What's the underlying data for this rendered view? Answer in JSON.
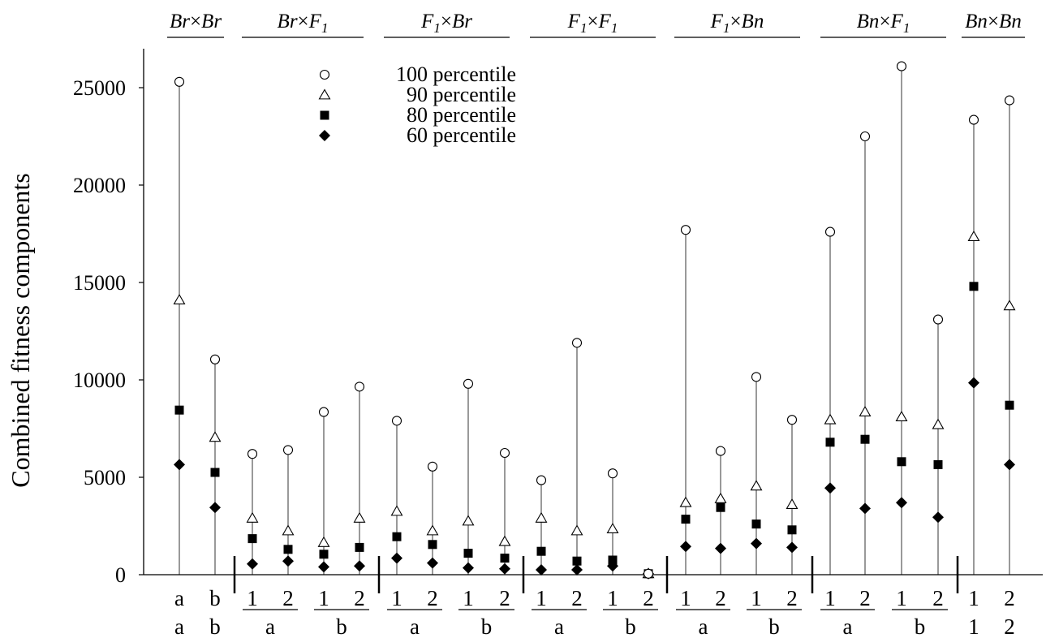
{
  "chart_data": {
    "type": "scatter",
    "ylabel": "Combined fitness components",
    "ylim": [
      0,
      27000
    ],
    "yticks": [
      0,
      5000,
      10000,
      15000,
      20000,
      25000
    ],
    "legend_position": "top-left",
    "legend": [
      {
        "label": "100 percentile",
        "marker": "open-circle"
      },
      {
        "label": "90 percentile",
        "marker": "open-triangle"
      },
      {
        "label": "80 percentile",
        "marker": "filled-square"
      },
      {
        "label": "60 percentile",
        "marker": "filled-diamond"
      }
    ],
    "series_keys": [
      "p100",
      "p90",
      "p80",
      "p60"
    ],
    "groups": [
      {
        "title": {
          "a": "Br",
          "sub": "",
          "b": "Br",
          "subb": ""
        },
        "columns": [
          {
            "row1": "a",
            "row2": "a",
            "p100": 25300,
            "p90": 14100,
            "p80": 8450,
            "p60": 5650
          },
          {
            "row1": "b",
            "row2": "b",
            "p100": 11050,
            "p90": 7050,
            "p80": 5250,
            "p60": 3450
          }
        ]
      },
      {
        "title": {
          "a": "Br",
          "sub": "",
          "b": "F",
          "subb": "1"
        },
        "subgroups": [
          {
            "label": "a",
            "columns": [
              {
                "row1": "1",
                "p100": 6200,
                "p90": 2900,
                "p80": 1850,
                "p60": 550
              },
              {
                "row1": "2",
                "p100": 6400,
                "p90": 2250,
                "p80": 1300,
                "p60": 700
              }
            ]
          },
          {
            "label": "b",
            "columns": [
              {
                "row1": "1",
                "p100": 8350,
                "p90": 1650,
                "p80": 1050,
                "p60": 400
              },
              {
                "row1": "2",
                "p100": 9650,
                "p90": 2900,
                "p80": 1400,
                "p60": 450
              }
            ]
          }
        ]
      },
      {
        "title": {
          "a": "F",
          "sub": "1",
          "b": "Br",
          "subb": ""
        },
        "subgroups": [
          {
            "label": "a",
            "columns": [
              {
                "row1": "1",
                "p100": 7900,
                "p90": 3250,
                "p80": 1950,
                "p60": 850
              },
              {
                "row1": "2",
                "p100": 5550,
                "p90": 2250,
                "p80": 1550,
                "p60": 600
              }
            ]
          },
          {
            "label": "b",
            "columns": [
              {
                "row1": "1",
                "p100": 9800,
                "p90": 2750,
                "p80": 1100,
                "p60": 350
              },
              {
                "row1": "2",
                "p100": 6250,
                "p90": 1700,
                "p80": 850,
                "p60": 300
              }
            ]
          }
        ]
      },
      {
        "title": {
          "a": "F",
          "sub": "1",
          "b": "F",
          "subb": "1"
        },
        "subgroups": [
          {
            "label": "a",
            "columns": [
              {
                "row1": "1",
                "p100": 4850,
                "p90": 2900,
                "p80": 1200,
                "p60": 250
              },
              {
                "row1": "2",
                "p100": 11900,
                "p90": 2250,
                "p80": 700,
                "p60": 250
              }
            ]
          },
          {
            "label": "b",
            "columns": [
              {
                "row1": "1",
                "p100": 5200,
                "p90": 2350,
                "p80": 750,
                "p60": 450
              },
              {
                "row1": "2",
                "p100": 50,
                "p90": 50,
                "p80": 50,
                "p60": 50
              }
            ]
          }
        ]
      },
      {
        "title": {
          "a": "F",
          "sub": "1",
          "b": "Bn",
          "subb": ""
        },
        "subgroups": [
          {
            "label": "a",
            "columns": [
              {
                "row1": "1",
                "p100": 17700,
                "p90": 3700,
                "p80": 2850,
                "p60": 1450
              },
              {
                "row1": "2",
                "p100": 6350,
                "p90": 3900,
                "p80": 3450,
                "p60": 1350
              }
            ]
          },
          {
            "label": "b",
            "columns": [
              {
                "row1": "1",
                "p100": 10150,
                "p90": 4550,
                "p80": 2600,
                "p60": 1600
              },
              {
                "row1": "2",
                "p100": 7950,
                "p90": 3600,
                "p80": 2300,
                "p60": 1400
              }
            ]
          }
        ]
      },
      {
        "title": {
          "a": "Bn",
          "sub": "",
          "b": "F",
          "subb": "1"
        },
        "subgroups": [
          {
            "label": "a",
            "columns": [
              {
                "row1": "1",
                "p100": 17600,
                "p90": 7950,
                "p80": 6800,
                "p60": 4450
              },
              {
                "row1": "2",
                "p100": 22500,
                "p90": 8350,
                "p80": 6950,
                "p60": 3400
              }
            ]
          },
          {
            "label": "b",
            "columns": [
              {
                "row1": "1",
                "p100": 26100,
                "p90": 8100,
                "p80": 5800,
                "p60": 3700
              },
              {
                "row1": "2",
                "p100": 13100,
                "p90": 7700,
                "p80": 5650,
                "p60": 2950
              }
            ]
          }
        ]
      },
      {
        "title": {
          "a": "Bn",
          "sub": "",
          "b": "Bn",
          "subb": ""
        },
        "columns": [
          {
            "row1": "1",
            "row2": "1",
            "p100": 23350,
            "p90": 17350,
            "p80": 14800,
            "p60": 9850
          },
          {
            "row1": "2",
            "row2": "2",
            "p100": 24350,
            "p90": 13800,
            "p80": 8700,
            "p60": 5650
          }
        ]
      }
    ]
  }
}
